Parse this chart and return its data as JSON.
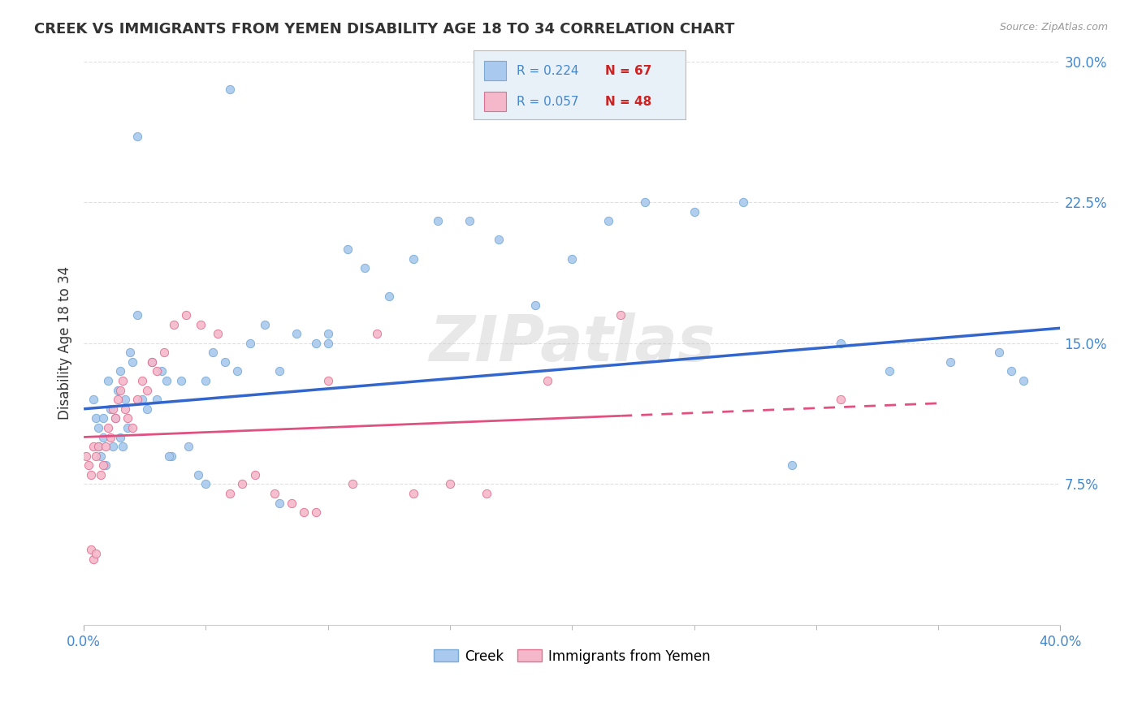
{
  "title": "CREEK VS IMMIGRANTS FROM YEMEN DISABILITY AGE 18 TO 34 CORRELATION CHART",
  "source": "Source: ZipAtlas.com",
  "ylabel": "Disability Age 18 to 34",
  "xmin": 0.0,
  "xmax": 0.4,
  "ymin": 0.0,
  "ymax": 0.3,
  "x_tick_positions": [
    0.0,
    0.4
  ],
  "x_tick_labels": [
    "0.0%",
    "40.0%"
  ],
  "y_ticks": [
    0.075,
    0.15,
    0.225,
    0.3
  ],
  "y_tick_labels": [
    "7.5%",
    "15.0%",
    "22.5%",
    "30.0%"
  ],
  "legend_blue_R": "R = 0.224",
  "legend_blue_N": "N = 67",
  "legend_pink_R": "R = 0.057",
  "legend_pink_N": "N = 48",
  "creek_color": "#aac9ee",
  "creek_edge_color": "#7aaad4",
  "yemen_color": "#f5b8cb",
  "yemen_edge_color": "#e07090",
  "blue_line_color": "#3366cc",
  "pink_line_color": "#e05080",
  "watermark": "ZIPatlas",
  "creek_x": [
    0.004,
    0.005,
    0.006,
    0.006,
    0.007,
    0.008,
    0.008,
    0.009,
    0.01,
    0.011,
    0.012,
    0.013,
    0.014,
    0.015,
    0.015,
    0.016,
    0.017,
    0.018,
    0.019,
    0.02,
    0.022,
    0.024,
    0.026,
    0.028,
    0.03,
    0.032,
    0.034,
    0.036,
    0.04,
    0.043,
    0.047,
    0.05,
    0.053,
    0.058,
    0.063,
    0.068,
    0.074,
    0.08,
    0.087,
    0.095,
    0.1,
    0.108,
    0.115,
    0.125,
    0.135,
    0.145,
    0.158,
    0.17,
    0.185,
    0.2,
    0.215,
    0.23,
    0.25,
    0.27,
    0.29,
    0.31,
    0.33,
    0.355,
    0.375,
    0.38,
    0.385,
    0.06,
    0.08,
    0.1,
    0.022,
    0.035,
    0.05
  ],
  "creek_y": [
    0.12,
    0.11,
    0.095,
    0.105,
    0.09,
    0.1,
    0.11,
    0.085,
    0.13,
    0.115,
    0.095,
    0.11,
    0.125,
    0.135,
    0.1,
    0.095,
    0.12,
    0.105,
    0.145,
    0.14,
    0.165,
    0.12,
    0.115,
    0.14,
    0.12,
    0.135,
    0.13,
    0.09,
    0.13,
    0.095,
    0.08,
    0.13,
    0.145,
    0.14,
    0.135,
    0.15,
    0.16,
    0.135,
    0.155,
    0.15,
    0.155,
    0.2,
    0.19,
    0.175,
    0.195,
    0.215,
    0.215,
    0.205,
    0.17,
    0.195,
    0.215,
    0.225,
    0.22,
    0.225,
    0.085,
    0.15,
    0.135,
    0.14,
    0.145,
    0.135,
    0.13,
    0.285,
    0.065,
    0.15,
    0.26,
    0.09,
    0.075
  ],
  "yemen_x": [
    0.001,
    0.002,
    0.003,
    0.004,
    0.005,
    0.006,
    0.007,
    0.008,
    0.009,
    0.01,
    0.011,
    0.012,
    0.013,
    0.014,
    0.015,
    0.016,
    0.017,
    0.018,
    0.02,
    0.022,
    0.024,
    0.026,
    0.028,
    0.03,
    0.033,
    0.037,
    0.042,
    0.048,
    0.055,
    0.06,
    0.065,
    0.07,
    0.078,
    0.085,
    0.09,
    0.095,
    0.1,
    0.11,
    0.12,
    0.135,
    0.15,
    0.165,
    0.19,
    0.22,
    0.003,
    0.004,
    0.005,
    0.31
  ],
  "yemen_y": [
    0.09,
    0.085,
    0.08,
    0.095,
    0.09,
    0.095,
    0.08,
    0.085,
    0.095,
    0.105,
    0.1,
    0.115,
    0.11,
    0.12,
    0.125,
    0.13,
    0.115,
    0.11,
    0.105,
    0.12,
    0.13,
    0.125,
    0.14,
    0.135,
    0.145,
    0.16,
    0.165,
    0.16,
    0.155,
    0.07,
    0.075,
    0.08,
    0.07,
    0.065,
    0.06,
    0.06,
    0.13,
    0.075,
    0.155,
    0.07,
    0.075,
    0.07,
    0.13,
    0.165,
    0.04,
    0.035,
    0.038,
    0.12
  ],
  "creek_trend_x": [
    0.0,
    0.4
  ],
  "creek_trend_y": [
    0.115,
    0.158
  ],
  "yemen_trend_x": [
    0.0,
    0.35
  ],
  "yemen_trend_y": [
    0.1,
    0.118
  ],
  "background_color": "#ffffff",
  "grid_color": "#dddddd",
  "title_color": "#333333",
  "axis_color": "#4488cc",
  "legend_box_color": "#e8f0f8",
  "marker_size": 55
}
